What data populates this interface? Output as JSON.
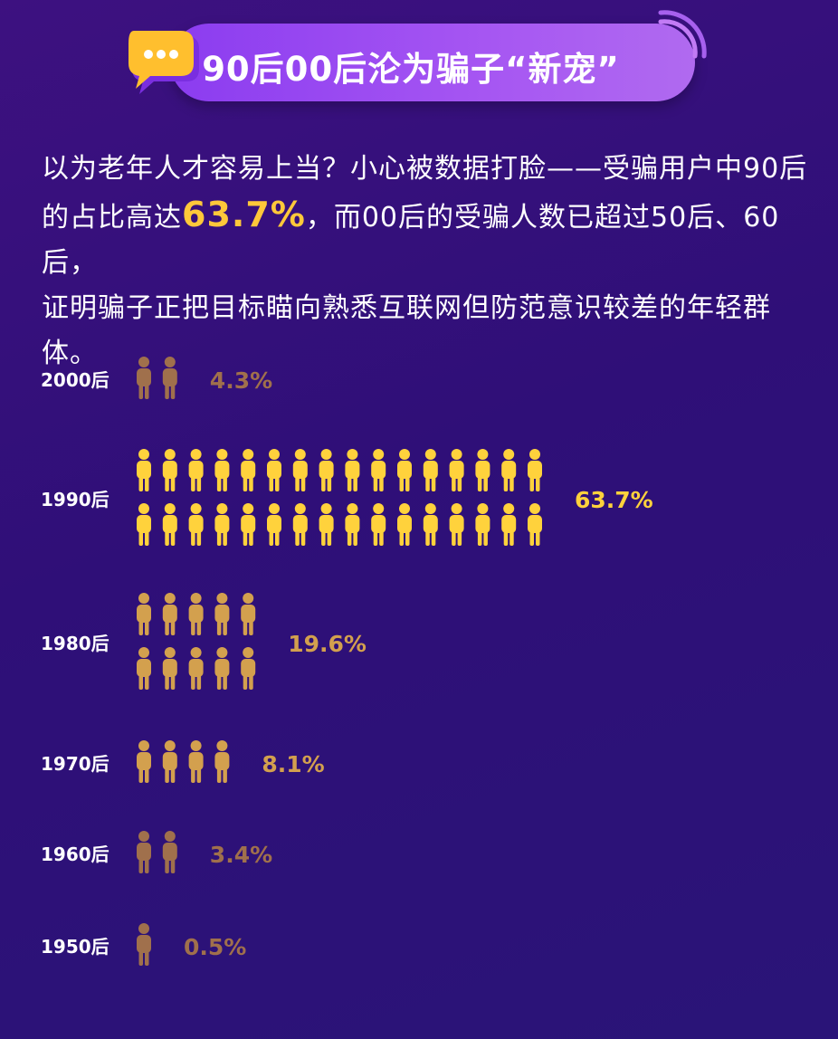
{
  "banner": {
    "title": "90后00后沦为骗子“新宠”"
  },
  "intro": {
    "line1": "以为老年人才容易上当？小心被数据打脸——受骗用户中90后",
    "line2_pre": "的占比高达",
    "line2_highlight": "63.7%",
    "line2_post": "，而00后的受骗人数已超过50后、60后，",
    "line3": "证明骗子正把目标瞄向熟悉互联网但防范意识较差的年轻群",
    "line4": "体。"
  },
  "colors": {
    "background": "#2f0f78",
    "gold": "#ffd23c",
    "tan": "#d3a04e",
    "brown": "#a0704c"
  },
  "chart_data": {
    "type": "bar",
    "categories": [
      "2000后",
      "1990后",
      "1980后",
      "1970后",
      "1960后",
      "1950后"
    ],
    "values": [
      4.3,
      63.7,
      19.6,
      8.1,
      3.4,
      0.5
    ],
    "value_labels": [
      "4.3%",
      "63.7%",
      "19.6%",
      "8.1%",
      "3.4%",
      "0.5%"
    ],
    "unit": "%",
    "icon_counts": [
      2,
      32,
      10,
      4,
      2,
      1
    ],
    "icon_rows": [
      1,
      2,
      2,
      1,
      1,
      1
    ],
    "icon_colors": [
      "#a0704c",
      "#ffd23c",
      "#d3a04e",
      "#d3a04e",
      "#a0704c",
      "#a0704c"
    ],
    "label_colors": [
      "#a0704c",
      "#ffd23c",
      "#d3a04e",
      "#d3a04e",
      "#a0704c",
      "#a0704c"
    ],
    "icon": "person-icon"
  }
}
